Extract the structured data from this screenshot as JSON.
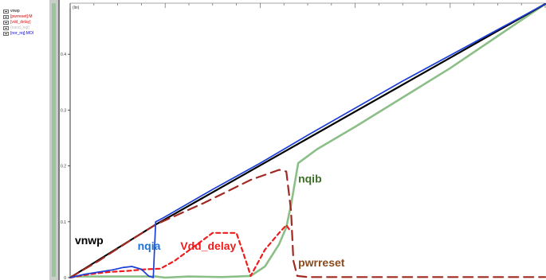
{
  "legend": {
    "items": [
      {
        "label": "vnwp",
        "color": "#000000"
      },
      {
        "label": "[pwrreset]:M",
        "color": "#cc0000"
      },
      {
        "label": "[vdd_delay]",
        "color": "#ff0000"
      },
      {
        "label": "(nand_nqi]",
        "color": "#bbbbbb"
      },
      {
        "label": "[nor_nq]:MOI",
        "color": "#0000dd"
      }
    ]
  },
  "chart_data": {
    "type": "line",
    "ylabel": "(lin)",
    "yticks": [
      {
        "value": 0,
        "label": "0"
      },
      {
        "value": 0.1,
        "label": "0.1"
      },
      {
        "value": 0.2,
        "label": "0.2"
      },
      {
        "value": 0.3,
        "label": "0.3"
      },
      {
        "value": 0.4,
        "label": "0.4"
      }
    ],
    "ylim": [
      0,
      0.49
    ],
    "xlim": [
      0,
      1
    ],
    "grid": false,
    "series": [
      {
        "name": "vnwp",
        "label": "vnwp",
        "color": "#000000",
        "style": "solid",
        "x": [
          0,
          0.18,
          1
        ],
        "y": [
          0,
          0.095,
          0.49
        ]
      },
      {
        "name": "pwrreset",
        "label": "pwrreset",
        "color": "#a02a22",
        "style": "dashed",
        "x": [
          0,
          0.06,
          0.12,
          0.18,
          0.28,
          0.38,
          0.44,
          0.455,
          0.465,
          0.47,
          0.478,
          0.5,
          0.6,
          0.7,
          0.8,
          0.9,
          1.0
        ],
        "y": [
          0,
          0.03,
          0.063,
          0.095,
          0.133,
          0.175,
          0.193,
          0.19,
          0.12,
          0.03,
          0.003,
          0.001,
          0.001,
          0.001,
          0.001,
          0.001,
          0.001
        ]
      },
      {
        "name": "Vdd_delay",
        "label": "Vdd_delay",
        "color": "#ee1c1c",
        "style": "dashed",
        "x": [
          0,
          0.04,
          0.08,
          0.12,
          0.16,
          0.19,
          0.22,
          0.3,
          0.35,
          0.37,
          0.38,
          0.41,
          0.44,
          0.455,
          0.462
        ],
        "y": [
          0,
          0.006,
          0.01,
          0.012,
          0.015,
          0.016,
          0.03,
          0.08,
          0.08,
          0.03,
          0.003,
          0.05,
          0.08,
          0.094,
          0.085
        ]
      },
      {
        "name": "nqia",
        "label": "nqia",
        "color": "#1c3fd8",
        "style": "solid",
        "x": [
          0,
          0.03,
          0.06,
          0.09,
          0.11,
          0.13,
          0.15,
          0.165,
          0.175,
          0.18,
          0.185,
          0.2,
          0.3,
          0.4,
          0.5,
          0.7,
          1.0
        ],
        "y": [
          0,
          0.006,
          0.01,
          0.014,
          0.018,
          0.02,
          0.015,
          0.003,
          0.0,
          0.1,
          0.102,
          0.109,
          0.158,
          0.205,
          0.255,
          0.352,
          0.49
        ]
      },
      {
        "name": "nqib",
        "label": "nqib",
        "color": "#8cbf88",
        "style": "solid",
        "x": [
          0,
          0.1,
          0.18,
          0.2,
          0.25,
          0.32,
          0.38,
          0.41,
          0.44,
          0.455,
          0.465,
          0.48,
          0.52,
          0.6,
          0.8,
          1.0
        ],
        "y": [
          0.002,
          0.002,
          0.002,
          0.0,
          0.002,
          0.001,
          0.003,
          0.02,
          0.06,
          0.09,
          0.13,
          0.205,
          0.23,
          0.27,
          0.375,
          0.49
        ]
      }
    ],
    "annotations": [
      {
        "text": "vnwp",
        "color": "#000000",
        "x": 0.01,
        "y": 0.06
      },
      {
        "text": "nqia",
        "color": "#1e73d6",
        "x": 0.142,
        "y": 0.05
      },
      {
        "text": "Vdd_delay",
        "color": "#ee1c1c",
        "x": 0.232,
        "y": 0.05
      },
      {
        "text": "nqib",
        "color": "#3e6e28",
        "x": 0.48,
        "y": 0.17
      },
      {
        "text": "pwrreset",
        "color": "#8a4a1c",
        "x": 0.48,
        "y": 0.02
      }
    ]
  }
}
